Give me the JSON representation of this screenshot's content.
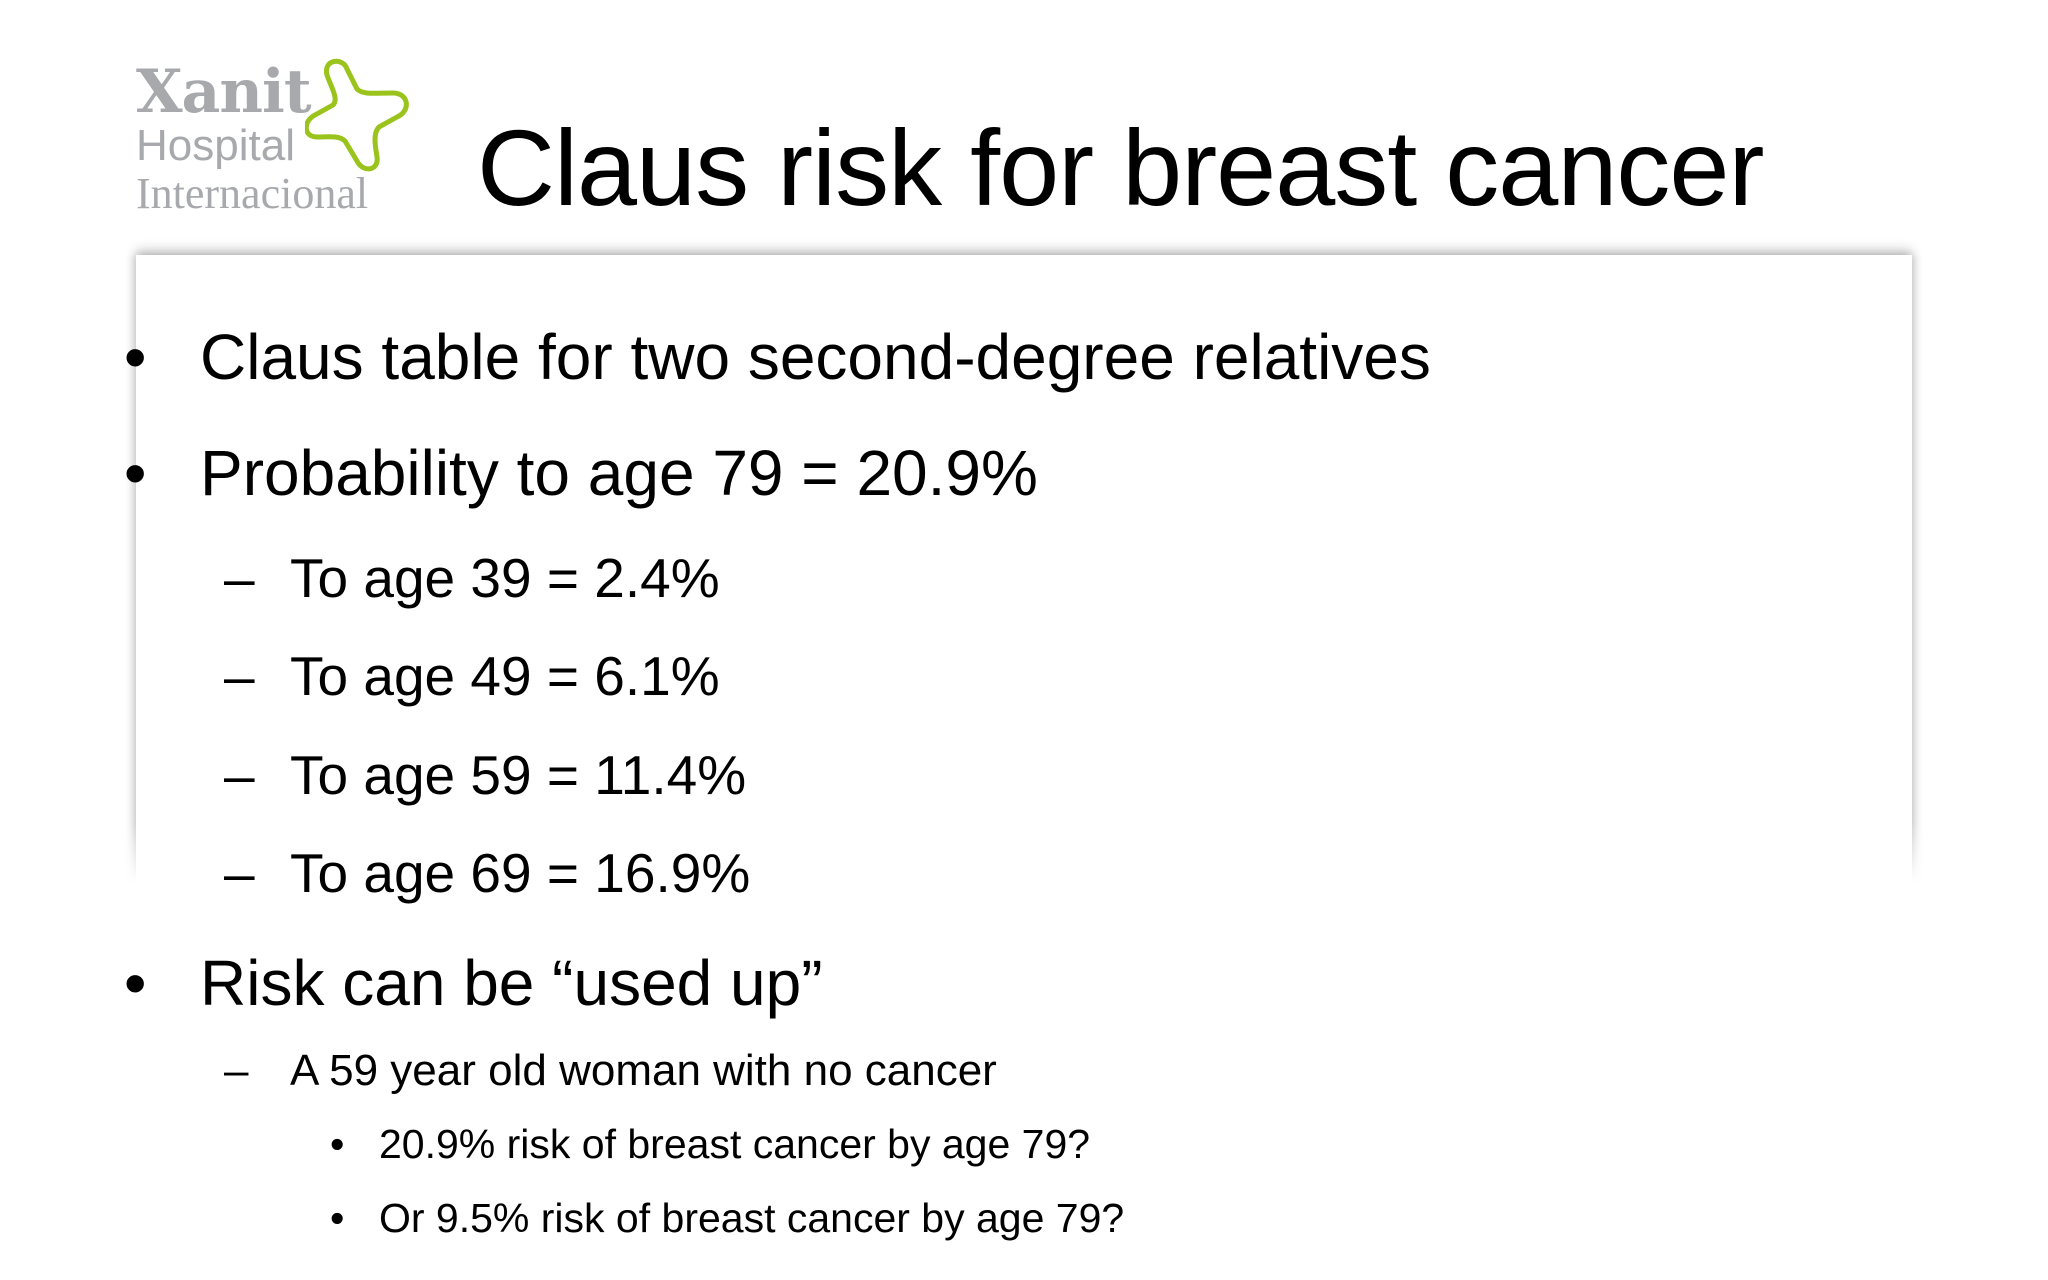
{
  "logo": {
    "line1": "Xanit",
    "line2": "Hospital",
    "line3": "Internacional",
    "accent_color": "#9ac31c",
    "text_color": "#a7a9ac"
  },
  "title": "Claus risk for breast cancer",
  "bullets": [
    {
      "level": 1,
      "marker": "•",
      "text": "Claus table for two second-degree relatives"
    },
    {
      "level": 1,
      "marker": "•",
      "text": "Probability to age 79 = 20.9%"
    },
    {
      "level": 2,
      "marker": "–",
      "text": "To age 39 = 2.4%"
    },
    {
      "level": 2,
      "marker": "–",
      "text": "To age 49 = 6.1%"
    },
    {
      "level": 2,
      "marker": "–",
      "text": "To age 59 = 11.4%"
    },
    {
      "level": 2,
      "marker": "–",
      "text": "To age 69 = 16.9%"
    },
    {
      "level": 1,
      "marker": "•",
      "text": "Risk can be “used up”"
    },
    {
      "level": 3,
      "marker": "–",
      "text": "A 59 year old woman with no cancer"
    },
    {
      "level": 4,
      "marker": "•",
      "text": "20.9% risk of breast cancer by age 79?"
    },
    {
      "level": 4,
      "marker": "•",
      "text": "Or 9.5% risk of breast cancer by age 79?"
    }
  ]
}
